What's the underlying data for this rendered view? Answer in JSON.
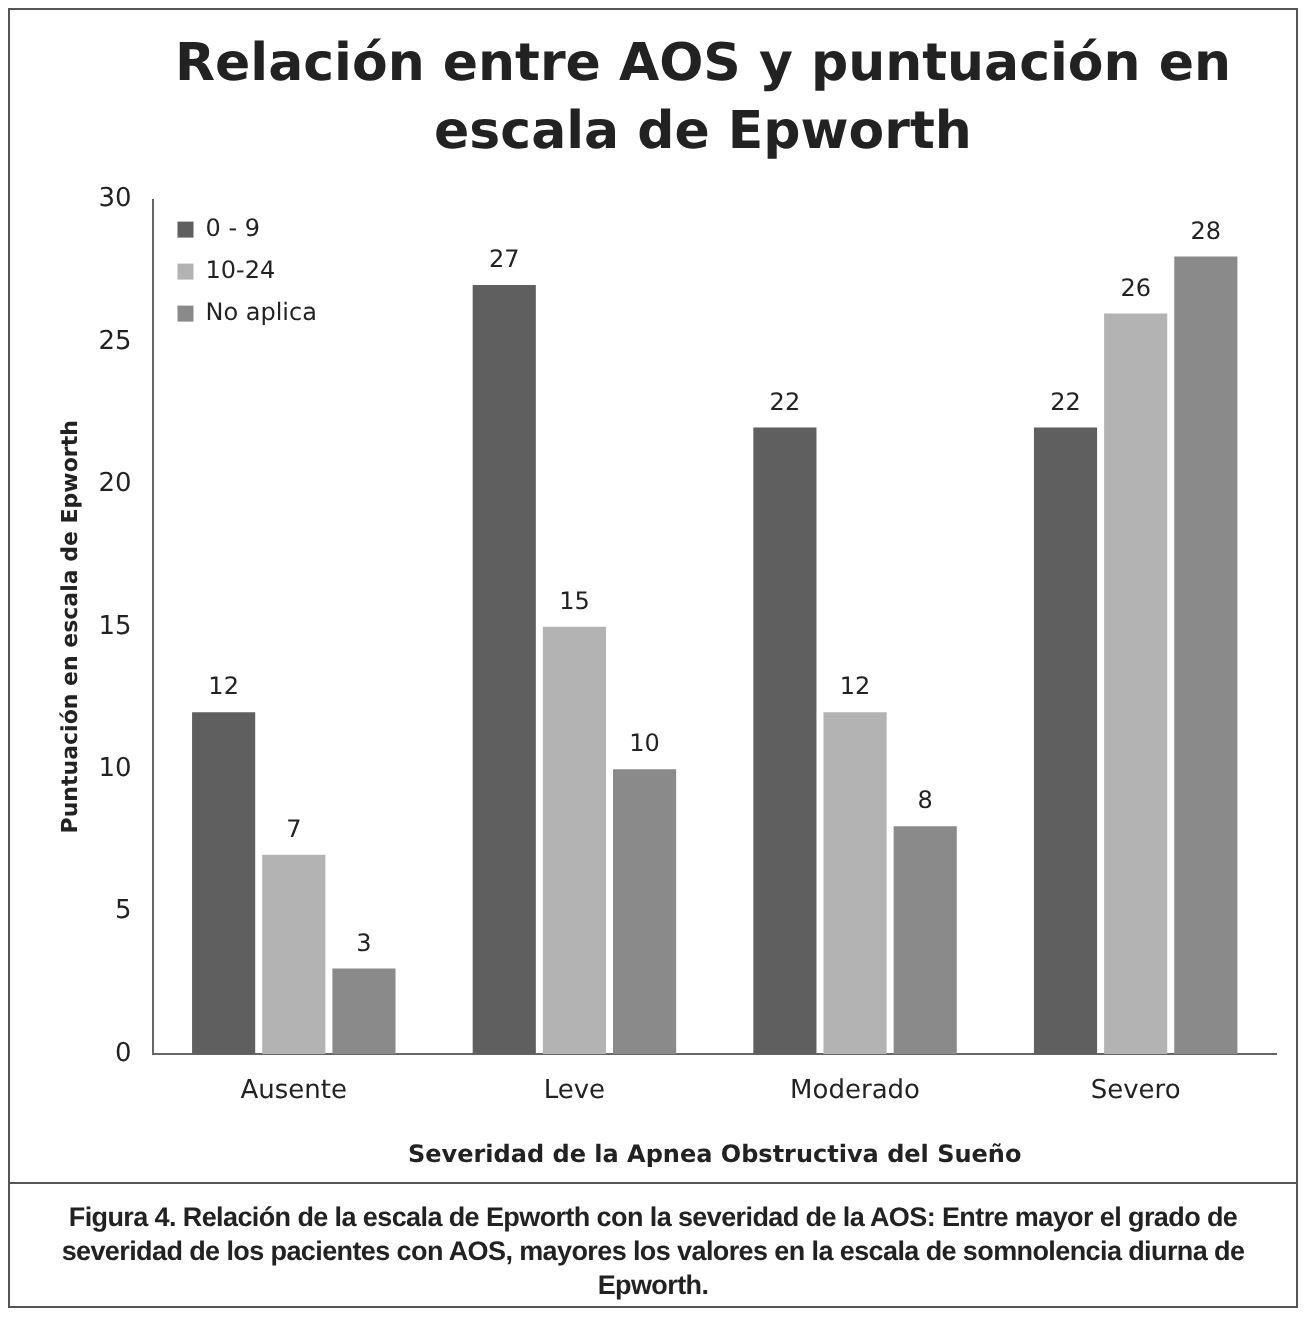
{
  "chart_data": {
    "type": "bar",
    "title": "Relación entre AOS y puntuación en escala de Epworth",
    "xlabel": "Severidad de la Apnea Obstructiva del Sueño",
    "ylabel": "Puntuación en escala de Epworth",
    "categories": [
      "Ausente",
      "Leve",
      "Moderado",
      "Severo"
    ],
    "series": [
      {
        "name": "0 - 9",
        "color": "#5f5f5f",
        "values": [
          12,
          27,
          22,
          22
        ]
      },
      {
        "name": "10-24",
        "color": "#b3b3b3",
        "values": [
          7,
          15,
          12,
          26
        ]
      },
      {
        "name": "No aplica",
        "color": "#8a8a8a",
        "values": [
          3,
          10,
          8,
          28
        ]
      }
    ],
    "ylim": [
      0,
      30
    ],
    "yticks": [
      0,
      5,
      10,
      15,
      20,
      25,
      30
    ],
    "grid": false,
    "legend": "top left",
    "data_labels": true,
    "annotations": [
      "Figura 4. Relación de la escala de Epworth con la severidad de la AOS: Entre mayor el grado de severidad de los pacientes con AOS, mayores los valores en la escala de somnolencia diurna de Epworth."
    ]
  }
}
